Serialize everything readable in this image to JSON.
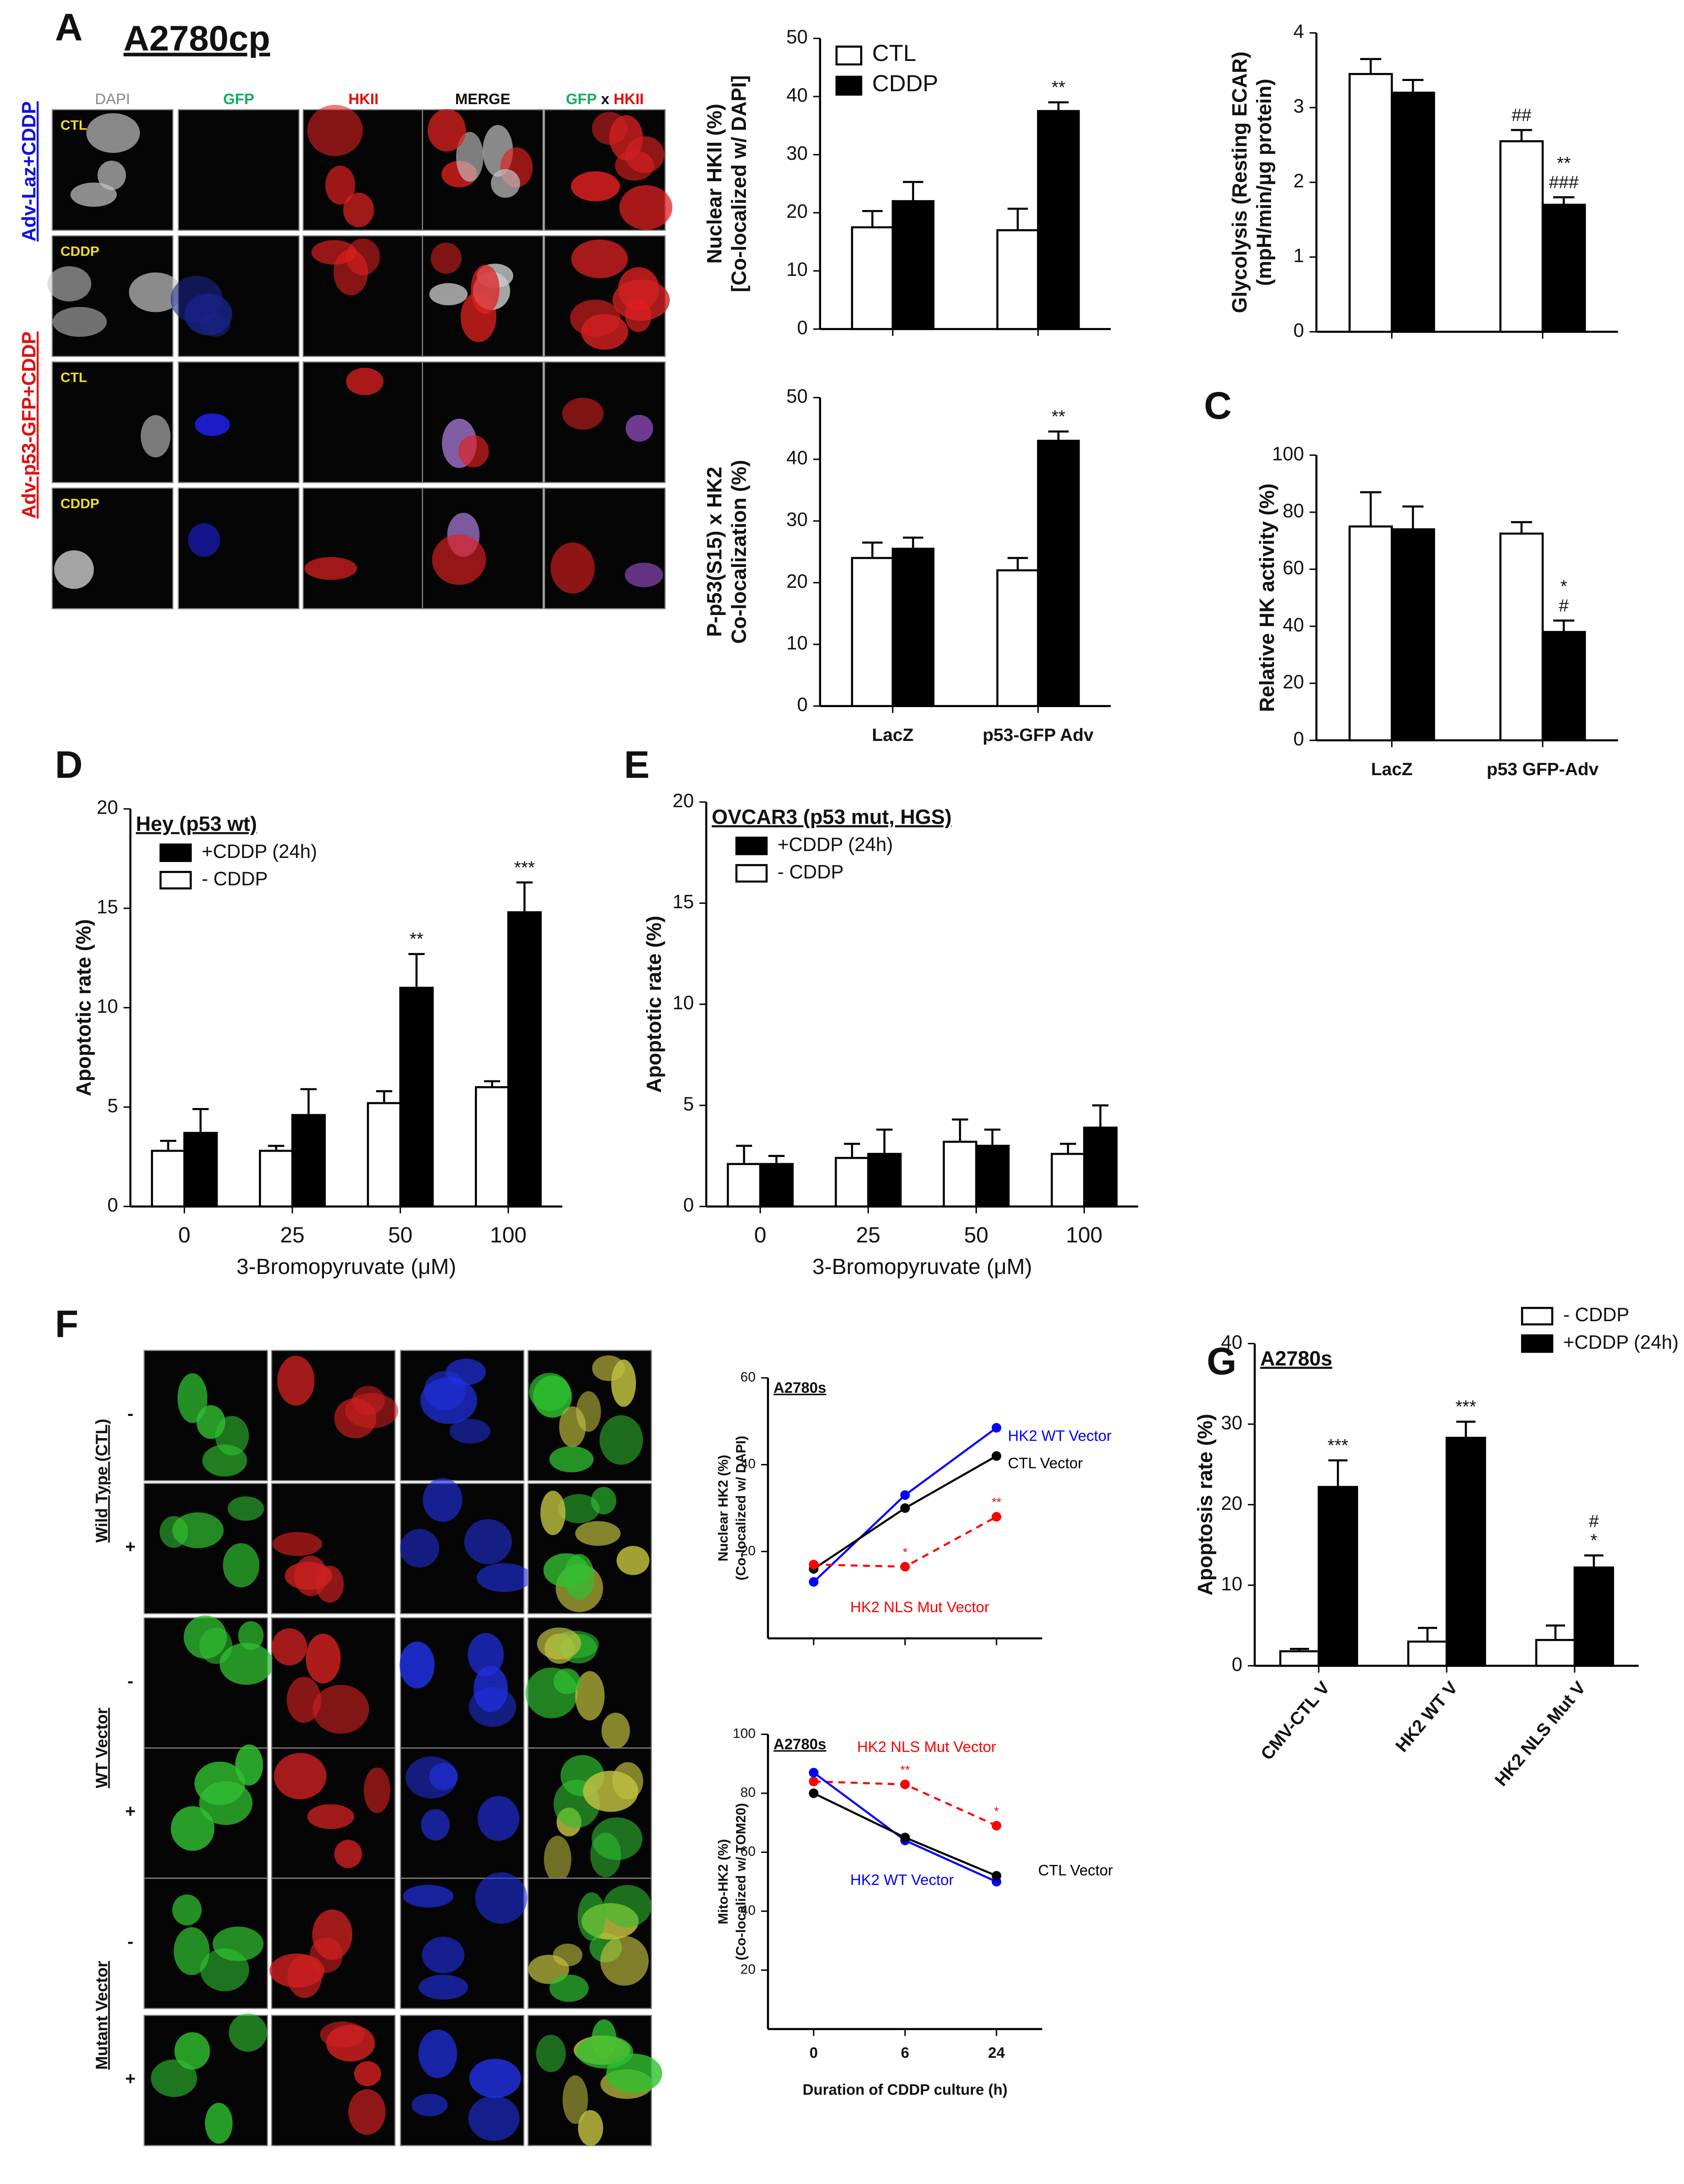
{
  "figure": {
    "panel_a": {
      "label": "A",
      "title": "A2780cp",
      "columns": [
        "DAPI",
        "GFP",
        "HKII",
        "MERGE",
        [
          "GFP",
          "x",
          "HKII"
        ]
      ],
      "row_labels": [
        "CTL",
        "CDDP",
        "CTL",
        "CDDP"
      ],
      "groups": [
        "Adv-Laz+CDDP",
        "Adv-p53-GFP+CDDP"
      ]
    },
    "panel_c": {
      "label": "C"
    },
    "panel_d": {
      "label": "D"
    },
    "panel_e": {
      "label": "E"
    },
    "panel_f": {
      "label": "F",
      "groups": [
        "Wild Type (CTL)",
        "WT Vector",
        "Mutant Vector"
      ],
      "row_signs": [
        "-",
        "+",
        "-",
        "+",
        "-",
        "+"
      ]
    },
    "panel_g": {
      "label": "G"
    }
  },
  "chart_data": [
    {
      "type": "bar",
      "ylabel": [
        "Nuclear HKII (%)",
        "[Co-localized w/ DAPI]"
      ],
      "categories": [
        null,
        null
      ],
      "ylim": [
        0,
        50
      ],
      "yticks": [
        0,
        10,
        20,
        30,
        40,
        50
      ],
      "legend": "upper left",
      "series": [
        {
          "name": "CTL",
          "color": "#ffffff",
          "values": [
            17.5,
            17
          ],
          "errors": [
            2.8,
            3.7
          ],
          "annotations": [
            null,
            null
          ]
        },
        {
          "name": "CDDP",
          "color": "#000000",
          "values": [
            22,
            37.5
          ],
          "errors": [
            3.3,
            1.5
          ],
          "annotations": [
            null,
            [
              "**"
            ]
          ]
        }
      ]
    },
    {
      "type": "bar",
      "ylabel": [
        "Glycolysis  (Resting ECAR)",
        "(mpH/min/µg protein)"
      ],
      "categories": [
        null,
        null
      ],
      "ylim": [
        0,
        4
      ],
      "yticks": [
        0,
        1,
        2,
        3,
        4
      ],
      "series": [
        {
          "color": "#ffffff",
          "values": [
            3.45,
            2.55
          ],
          "errors": [
            0.2,
            0.15
          ],
          "annotations": [
            null,
            [
              "##"
            ]
          ]
        },
        {
          "color": "#000000",
          "values": [
            3.2,
            1.7
          ],
          "errors": [
            0.17,
            0.1
          ],
          "annotations": [
            null,
            [
              "**",
              "###"
            ]
          ]
        }
      ]
    },
    {
      "type": "bar",
      "ylabel": [
        "P-p53(S15) x HK2",
        "Co-localization (%)"
      ],
      "categories": [
        "LacZ",
        "p53-GFP Adv"
      ],
      "ylim": [
        0,
        50
      ],
      "yticks": [
        0,
        10,
        20,
        30,
        40,
        50
      ],
      "series": [
        {
          "color": "#ffffff",
          "values": [
            24,
            22
          ],
          "errors": [
            2.5,
            2
          ],
          "annotations": [
            null,
            null
          ]
        },
        {
          "color": "#000000",
          "values": [
            25.5,
            43
          ],
          "errors": [
            1.8,
            1.5
          ],
          "annotations": [
            null,
            [
              "**"
            ]
          ]
        }
      ]
    },
    {
      "type": "bar",
      "ylabel": "Relative HK activity (%)",
      "categories": [
        "LacZ",
        "p53 GFP-Adv"
      ],
      "ylim": [
        0,
        100
      ],
      "yticks": [
        0,
        20,
        40,
        60,
        80,
        100
      ],
      "series": [
        {
          "color": "#ffffff",
          "values": [
            75,
            72.5
          ],
          "errors": [
            12,
            4
          ],
          "annotations": [
            null,
            null
          ]
        },
        {
          "color": "#000000",
          "values": [
            74,
            38
          ],
          "errors": [
            8,
            4
          ],
          "annotations": [
            null,
            [
              "*",
              "#"
            ]
          ]
        }
      ]
    },
    {
      "type": "bar",
      "title": "Hey (p53 wt)",
      "ylabel": "Apoptotic rate (%)",
      "xlabel": "3-Bromopyruvate (μM)",
      "categories": [
        "0",
        "25",
        "50",
        "100"
      ],
      "ylim": [
        0,
        20
      ],
      "yticks": [
        0,
        5,
        10,
        15,
        20
      ],
      "legend": "upper left",
      "bars_reversed": true,
      "series": [
        {
          "name": "+CDDP (24h)",
          "color": "#000000",
          "values": [
            3.7,
            4.6,
            11,
            14.8
          ],
          "errors": [
            1.2,
            1.3,
            1.7,
            1.5
          ],
          "annotations": [
            null,
            null,
            [
              "**"
            ],
            [
              "***"
            ]
          ]
        },
        {
          "name": "- CDDP",
          "color": "#ffffff",
          "values": [
            2.8,
            2.8,
            5.2,
            6
          ],
          "errors": [
            0.5,
            0.25,
            0.6,
            0.3
          ],
          "annotations": [
            null,
            null,
            null,
            null
          ]
        }
      ]
    },
    {
      "type": "bar",
      "title": "OVCAR3 (p53 mut, HGS)",
      "ylabel": "Apoptotic rate (%)",
      "xlabel": "3-Bromopyruvate (μM)",
      "categories": [
        "0",
        "25",
        "50",
        "100"
      ],
      "ylim": [
        0,
        20
      ],
      "yticks": [
        0,
        5,
        10,
        15,
        20
      ],
      "legend": "upper left",
      "bars_reversed": true,
      "series": [
        {
          "name": "+CDDP (24h)",
          "color": "#000000",
          "values": [
            2.1,
            2.6,
            3.0,
            3.9
          ],
          "errors": [
            0.4,
            1.2,
            0.8,
            1.1
          ],
          "annotations": [
            null,
            null,
            null,
            null
          ]
        },
        {
          "name": "- CDDP",
          "color": "#ffffff",
          "values": [
            2.1,
            2.4,
            3.2,
            2.6
          ],
          "errors": [
            0.9,
            0.7,
            1.1,
            0.5
          ],
          "annotations": [
            null,
            null,
            null,
            null
          ]
        }
      ]
    },
    {
      "type": "line",
      "title": "A2780s",
      "ylabel": [
        "Nuclear HK2 (%)",
        "(Co-localized w/ DAPI)"
      ],
      "categories": [
        null,
        null,
        null
      ],
      "ylim": [
        0,
        60
      ],
      "yticks": [
        20,
        40,
        60
      ],
      "series": [
        {
          "name": "HK2 WT Vector",
          "color": "#0000ff",
          "values": [
            13,
            33,
            48.5
          ]
        },
        {
          "name": "CTL Vector",
          "color": "#000000",
          "values": [
            16,
            30,
            42
          ]
        },
        {
          "name": "HK2 NLS Mut Vector",
          "color": "#ff0000",
          "linestyle": "dashed",
          "values": [
            17,
            16.5,
            28
          ],
          "annotations": [
            null,
            "*",
            "**"
          ]
        }
      ]
    },
    {
      "type": "line",
      "title": "A2780s",
      "ylabel": [
        "Mito-HK2 (%)",
        "(Co-localized w/ TOM20)"
      ],
      "xlabel": "Duration of CDDP culture (h)",
      "categories": [
        "0",
        "6",
        "24"
      ],
      "ylim": [
        0,
        100
      ],
      "yticks": [
        20,
        40,
        60,
        80,
        100
      ],
      "series": [
        {
          "name": "HK2 NLS Mut Vector",
          "color": "#ff0000",
          "linestyle": "dashed",
          "values": [
            84,
            83,
            69
          ],
          "annotations": [
            null,
            "**",
            "*"
          ]
        },
        {
          "name": "HK2 WT Vector",
          "color": "#0000ff",
          "values": [
            87,
            64,
            50
          ]
        },
        {
          "name": "CTL Vector",
          "color": "#000000",
          "values": [
            80,
            65,
            52
          ]
        }
      ]
    },
    {
      "type": "bar",
      "title": "A2780s",
      "ylabel": "Apoptosis rate (%)",
      "categories": [
        "CMV-CTL V",
        "HK2 WT V",
        "HK2 NLS Mut V"
      ],
      "xtick_rotation": -50,
      "ylim": [
        0,
        40
      ],
      "yticks": [
        0,
        10,
        20,
        30,
        40
      ],
      "legend": "outside upper right",
      "series": [
        {
          "name": "- CDDP",
          "color": "#ffffff",
          "values": [
            1.8,
            3,
            3.2
          ],
          "errors": [
            0.3,
            1.7,
            1.8
          ],
          "annotations": [
            null,
            null,
            null
          ]
        },
        {
          "name": "+CDDP (24h)",
          "color": "#000000",
          "values": [
            22.2,
            28.3,
            12.2
          ],
          "errors": [
            3.3,
            2,
            1.5
          ],
          "annotations": [
            [
              "***"
            ],
            [
              "***"
            ],
            [
              "#",
              "*"
            ]
          ]
        }
      ]
    }
  ]
}
